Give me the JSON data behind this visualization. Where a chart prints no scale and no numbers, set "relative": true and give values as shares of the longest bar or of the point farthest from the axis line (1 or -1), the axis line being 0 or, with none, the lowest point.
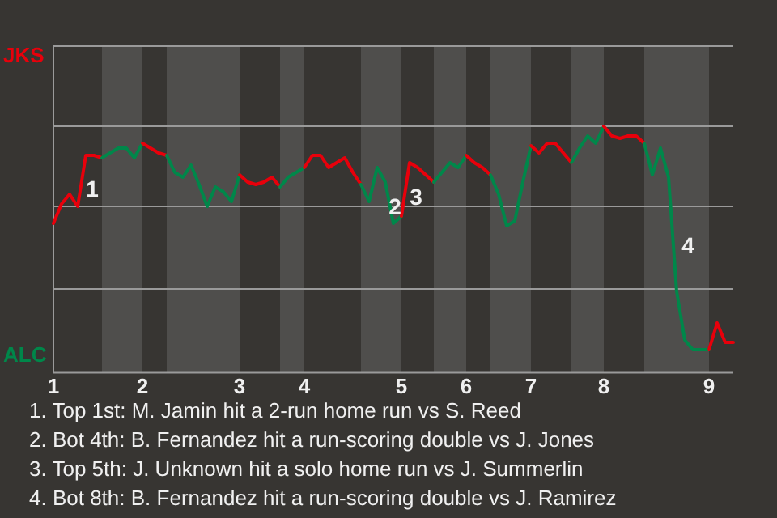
{
  "chart_data": {
    "type": "line",
    "relative": true,
    "marker": "none",
    "line_style": "solid",
    "ref_lines": [
      {
        "axis": "y",
        "value": 0.33,
        "color": "#9a9a9a"
      },
      {
        "axis": "y",
        "value": 0.67,
        "color": "#9a9a9a"
      },
      {
        "axis": "y",
        "value": 1,
        "color": "#9a9a9a"
      },
      {
        "axis": "y",
        "value": 1.33,
        "color": "#9a9a9a"
      }
    ],
    "categories": [
      "1",
      null,
      null,
      null,
      null,
      null,
      null,
      null,
      null,
      null,
      null,
      "2",
      null,
      null,
      null,
      null,
      null,
      null,
      null,
      null,
      null,
      null,
      null,
      "3",
      null,
      null,
      null,
      null,
      null,
      null,
      null,
      "4",
      null,
      null,
      null,
      null,
      null,
      null,
      null,
      null,
      null,
      null,
      null,
      "5",
      null,
      null,
      null,
      null,
      null,
      null,
      null,
      "6",
      null,
      null,
      null,
      null,
      null,
      null,
      null,
      "7",
      null,
      null,
      null,
      null,
      null,
      null,
      null,
      null,
      "8",
      null,
      null,
      null,
      null,
      null,
      null,
      null,
      null,
      null,
      null,
      null,
      null,
      "9",
      null,
      null,
      null
    ],
    "series": [
      {
        "color": "#e8000b",
        "values": [
          0.6,
          0.68,
          0.72,
          0.67,
          0.88,
          0.88,
          0.87,
          null,
          null,
          null,
          null,
          null,
          null,
          null,
          null,
          null,
          null,
          null,
          null,
          null,
          null,
          null,
          null,
          null,
          null,
          null,
          null,
          null,
          null,
          null,
          null,
          null,
          null,
          null,
          null,
          null,
          null,
          null,
          null,
          null,
          null,
          null,
          null,
          null,
          null,
          null,
          null,
          null,
          null,
          null,
          null,
          null,
          null,
          null,
          null,
          null,
          null,
          null,
          null,
          null,
          null,
          null,
          null,
          null,
          null,
          null,
          null,
          null,
          null,
          null,
          null,
          null,
          null,
          null,
          null,
          null,
          null,
          null,
          null,
          null,
          null,
          null,
          null,
          null,
          null
        ]
      },
      {
        "color": "#00874a",
        "values": [
          null,
          null,
          null,
          null,
          null,
          null,
          0.87,
          0.89,
          0.91,
          0.91,
          0.87,
          0.93,
          null,
          null,
          null,
          null,
          null,
          null,
          null,
          null,
          null,
          null,
          null,
          null,
          null,
          null,
          null,
          null,
          null,
          null,
          null,
          null,
          null,
          null,
          null,
          null,
          null,
          null,
          null,
          null,
          null,
          null,
          null,
          null,
          null,
          null,
          null,
          null,
          null,
          null,
          null,
          null,
          null,
          null,
          null,
          null,
          null,
          null,
          null,
          null,
          null,
          null,
          null,
          null,
          null,
          null,
          null,
          null,
          null,
          null,
          null,
          null,
          null,
          null,
          null,
          null,
          null,
          null,
          null,
          null,
          null,
          null,
          null,
          null,
          null
        ]
      },
      {
        "color": "#e8000b",
        "values": [
          null,
          null,
          null,
          null,
          null,
          null,
          null,
          null,
          null,
          null,
          null,
          0.93,
          0.91,
          0.89,
          0.88,
          null,
          null,
          null,
          null,
          null,
          null,
          null,
          null,
          null,
          null,
          null,
          null,
          null,
          null,
          null,
          null,
          null,
          null,
          null,
          null,
          null,
          null,
          null,
          null,
          null,
          null,
          null,
          null,
          null,
          null,
          null,
          null,
          null,
          null,
          null,
          null,
          null,
          null,
          null,
          null,
          null,
          null,
          null,
          null,
          null,
          null,
          null,
          null,
          null,
          null,
          null,
          null,
          null,
          null,
          null,
          null,
          null,
          null,
          null,
          null,
          null,
          null,
          null,
          null,
          null,
          null,
          null,
          null,
          null,
          null
        ]
      },
      {
        "color": "#00874a",
        "values": [
          null,
          null,
          null,
          null,
          null,
          null,
          null,
          null,
          null,
          null,
          null,
          null,
          null,
          null,
          0.88,
          0.81,
          0.79,
          0.84,
          0.76,
          0.67,
          0.75,
          0.73,
          0.69,
          0.8,
          null,
          null,
          null,
          null,
          null,
          null,
          null,
          null,
          null,
          null,
          null,
          null,
          null,
          null,
          null,
          null,
          null,
          null,
          null,
          null,
          null,
          null,
          null,
          null,
          null,
          null,
          null,
          null,
          null,
          null,
          null,
          null,
          null,
          null,
          null,
          null,
          null,
          null,
          null,
          null,
          null,
          null,
          null,
          null,
          null,
          null,
          null,
          null,
          null,
          null,
          null,
          null,
          null,
          null,
          null,
          null,
          null,
          null,
          null,
          null,
          null
        ]
      },
      {
        "color": "#e8000b",
        "values": [
          null,
          null,
          null,
          null,
          null,
          null,
          null,
          null,
          null,
          null,
          null,
          null,
          null,
          null,
          null,
          null,
          null,
          null,
          null,
          null,
          null,
          null,
          null,
          0.8,
          0.77,
          0.76,
          0.77,
          0.79,
          0.75,
          null,
          null,
          null,
          null,
          null,
          null,
          null,
          null,
          null,
          null,
          null,
          null,
          null,
          null,
          null,
          null,
          null,
          null,
          null,
          null,
          null,
          null,
          null,
          null,
          null,
          null,
          null,
          null,
          null,
          null,
          null,
          null,
          null,
          null,
          null,
          null,
          null,
          null,
          null,
          null,
          null,
          null,
          null,
          null,
          null,
          null,
          null,
          null,
          null,
          null,
          null,
          null,
          null,
          null,
          null,
          null
        ]
      },
      {
        "color": "#00874a",
        "values": [
          null,
          null,
          null,
          null,
          null,
          null,
          null,
          null,
          null,
          null,
          null,
          null,
          null,
          null,
          null,
          null,
          null,
          null,
          null,
          null,
          null,
          null,
          null,
          null,
          null,
          null,
          null,
          null,
          0.75,
          0.79,
          0.81,
          0.83,
          null,
          null,
          null,
          null,
          null,
          null,
          null,
          null,
          null,
          null,
          null,
          null,
          null,
          null,
          null,
          null,
          null,
          null,
          null,
          null,
          null,
          null,
          null,
          null,
          null,
          null,
          null,
          null,
          null,
          null,
          null,
          null,
          null,
          null,
          null,
          null,
          null,
          null,
          null,
          null,
          null,
          null,
          null,
          null,
          null,
          null,
          null,
          null,
          null,
          null,
          null,
          null,
          null
        ]
      },
      {
        "color": "#e8000b",
        "values": [
          null,
          null,
          null,
          null,
          null,
          null,
          null,
          null,
          null,
          null,
          null,
          null,
          null,
          null,
          null,
          null,
          null,
          null,
          null,
          null,
          null,
          null,
          null,
          null,
          null,
          null,
          null,
          null,
          null,
          null,
          null,
          0.83,
          0.88,
          0.88,
          0.83,
          0.85,
          0.87,
          0.81,
          0.76,
          null,
          null,
          null,
          null,
          null,
          null,
          null,
          null,
          null,
          null,
          null,
          null,
          null,
          null,
          null,
          null,
          null,
          null,
          null,
          null,
          null,
          null,
          null,
          null,
          null,
          null,
          null,
          null,
          null,
          null,
          null,
          null,
          null,
          null,
          null,
          null,
          null,
          null,
          null,
          null,
          null,
          null,
          null,
          null,
          null,
          null
        ]
      },
      {
        "color": "#00874a",
        "values": [
          null,
          null,
          null,
          null,
          null,
          null,
          null,
          null,
          null,
          null,
          null,
          null,
          null,
          null,
          null,
          null,
          null,
          null,
          null,
          null,
          null,
          null,
          null,
          null,
          null,
          null,
          null,
          null,
          null,
          null,
          null,
          null,
          null,
          null,
          null,
          null,
          null,
          null,
          0.76,
          0.69,
          0.83,
          0.77,
          0.6,
          0.63,
          null,
          null,
          null,
          null,
          null,
          null,
          null,
          null,
          null,
          null,
          null,
          null,
          null,
          null,
          null,
          null,
          null,
          null,
          null,
          null,
          null,
          null,
          null,
          null,
          null,
          null,
          null,
          null,
          null,
          null,
          null,
          null,
          null,
          null,
          null,
          null,
          null,
          null,
          null,
          null,
          null
        ]
      },
      {
        "color": "#e8000b",
        "values": [
          null,
          null,
          null,
          null,
          null,
          null,
          null,
          null,
          null,
          null,
          null,
          null,
          null,
          null,
          null,
          null,
          null,
          null,
          null,
          null,
          null,
          null,
          null,
          null,
          null,
          null,
          null,
          null,
          null,
          null,
          null,
          null,
          null,
          null,
          null,
          null,
          null,
          null,
          null,
          null,
          null,
          null,
          null,
          0.63,
          0.85,
          0.83,
          0.8,
          0.77,
          null,
          null,
          null,
          null,
          null,
          null,
          null,
          null,
          null,
          null,
          null,
          null,
          null,
          null,
          null,
          null,
          null,
          null,
          null,
          null,
          null,
          null,
          null,
          null,
          null,
          null,
          null,
          null,
          null,
          null,
          null,
          null,
          null,
          null,
          null,
          null,
          null
        ]
      },
      {
        "color": "#00874a",
        "values": [
          null,
          null,
          null,
          null,
          null,
          null,
          null,
          null,
          null,
          null,
          null,
          null,
          null,
          null,
          null,
          null,
          null,
          null,
          null,
          null,
          null,
          null,
          null,
          null,
          null,
          null,
          null,
          null,
          null,
          null,
          null,
          null,
          null,
          null,
          null,
          null,
          null,
          null,
          null,
          null,
          null,
          null,
          null,
          null,
          null,
          null,
          null,
          0.77,
          0.81,
          0.85,
          0.83,
          0.88,
          null,
          null,
          null,
          null,
          null,
          null,
          null,
          null,
          null,
          null,
          null,
          null,
          null,
          null,
          null,
          null,
          null,
          null,
          null,
          null,
          null,
          null,
          null,
          null,
          null,
          null,
          null,
          null,
          null,
          null,
          null,
          null,
          null
        ]
      },
      {
        "color": "#e8000b",
        "values": [
          null,
          null,
          null,
          null,
          null,
          null,
          null,
          null,
          null,
          null,
          null,
          null,
          null,
          null,
          null,
          null,
          null,
          null,
          null,
          null,
          null,
          null,
          null,
          null,
          null,
          null,
          null,
          null,
          null,
          null,
          null,
          null,
          null,
          null,
          null,
          null,
          null,
          null,
          null,
          null,
          null,
          null,
          null,
          null,
          null,
          null,
          null,
          null,
          null,
          null,
          null,
          0.88,
          0.85,
          0.83,
          0.8,
          null,
          null,
          null,
          null,
          null,
          null,
          null,
          null,
          null,
          null,
          null,
          null,
          null,
          null,
          null,
          null,
          null,
          null,
          null,
          null,
          null,
          null,
          null,
          null,
          null,
          null,
          null,
          null,
          null,
          null
        ]
      },
      {
        "color": "#00874a",
        "values": [
          null,
          null,
          null,
          null,
          null,
          null,
          null,
          null,
          null,
          null,
          null,
          null,
          null,
          null,
          null,
          null,
          null,
          null,
          null,
          null,
          null,
          null,
          null,
          null,
          null,
          null,
          null,
          null,
          null,
          null,
          null,
          null,
          null,
          null,
          null,
          null,
          null,
          null,
          null,
          null,
          null,
          null,
          null,
          null,
          null,
          null,
          null,
          null,
          null,
          null,
          null,
          null,
          null,
          null,
          0.8,
          0.72,
          0.59,
          0.61,
          0.77,
          0.92,
          null,
          null,
          null,
          null,
          null,
          null,
          null,
          null,
          null,
          null,
          null,
          null,
          null,
          null,
          null,
          null,
          null,
          null,
          null,
          null,
          null,
          null,
          null,
          null,
          null
        ]
      },
      {
        "color": "#e8000b",
        "values": [
          null,
          null,
          null,
          null,
          null,
          null,
          null,
          null,
          null,
          null,
          null,
          null,
          null,
          null,
          null,
          null,
          null,
          null,
          null,
          null,
          null,
          null,
          null,
          null,
          null,
          null,
          null,
          null,
          null,
          null,
          null,
          null,
          null,
          null,
          null,
          null,
          null,
          null,
          null,
          null,
          null,
          null,
          null,
          null,
          null,
          null,
          null,
          null,
          null,
          null,
          null,
          null,
          null,
          null,
          null,
          null,
          null,
          null,
          null,
          0.92,
          0.89,
          0.93,
          0.93,
          0.89,
          0.85,
          null,
          null,
          null,
          null,
          null,
          null,
          null,
          null,
          null,
          null,
          null,
          null,
          null,
          null,
          null,
          null,
          null,
          null,
          null,
          null
        ]
      },
      {
        "color": "#00874a",
        "values": [
          null,
          null,
          null,
          null,
          null,
          null,
          null,
          null,
          null,
          null,
          null,
          null,
          null,
          null,
          null,
          null,
          null,
          null,
          null,
          null,
          null,
          null,
          null,
          null,
          null,
          null,
          null,
          null,
          null,
          null,
          null,
          null,
          null,
          null,
          null,
          null,
          null,
          null,
          null,
          null,
          null,
          null,
          null,
          null,
          null,
          null,
          null,
          null,
          null,
          null,
          null,
          null,
          null,
          null,
          null,
          null,
          null,
          null,
          null,
          null,
          null,
          null,
          null,
          null,
          0.85,
          0.91,
          0.96,
          0.93,
          1,
          null,
          null,
          null,
          null,
          null,
          null,
          null,
          null,
          null,
          null,
          null,
          null,
          null,
          null,
          null,
          null
        ]
      },
      {
        "color": "#e8000b",
        "values": [
          null,
          null,
          null,
          null,
          null,
          null,
          null,
          null,
          null,
          null,
          null,
          null,
          null,
          null,
          null,
          null,
          null,
          null,
          null,
          null,
          null,
          null,
          null,
          null,
          null,
          null,
          null,
          null,
          null,
          null,
          null,
          null,
          null,
          null,
          null,
          null,
          null,
          null,
          null,
          null,
          null,
          null,
          null,
          null,
          null,
          null,
          null,
          null,
          null,
          null,
          null,
          null,
          null,
          null,
          null,
          null,
          null,
          null,
          null,
          null,
          null,
          null,
          null,
          null,
          null,
          null,
          null,
          null,
          1,
          0.96,
          0.95,
          0.96,
          0.96,
          0.93,
          null,
          null,
          null,
          null,
          null,
          null,
          null,
          null,
          null,
          null,
          null
        ]
      },
      {
        "color": "#00874a",
        "values": [
          null,
          null,
          null,
          null,
          null,
          null,
          null,
          null,
          null,
          null,
          null,
          null,
          null,
          null,
          null,
          null,
          null,
          null,
          null,
          null,
          null,
          null,
          null,
          null,
          null,
          null,
          null,
          null,
          null,
          null,
          null,
          null,
          null,
          null,
          null,
          null,
          null,
          null,
          null,
          null,
          null,
          null,
          null,
          null,
          null,
          null,
          null,
          null,
          null,
          null,
          null,
          null,
          null,
          null,
          null,
          null,
          null,
          null,
          null,
          null,
          null,
          null,
          null,
          null,
          null,
          null,
          null,
          null,
          null,
          null,
          null,
          null,
          null,
          0.93,
          0.8,
          0.91,
          0.79,
          0.32,
          0.12,
          0.08,
          0.08,
          0.08,
          null,
          null,
          null
        ]
      },
      {
        "color": "#e8000b",
        "values": [
          null,
          null,
          null,
          null,
          null,
          null,
          null,
          null,
          null,
          null,
          null,
          null,
          null,
          null,
          null,
          null,
          null,
          null,
          null,
          null,
          null,
          null,
          null,
          null,
          null,
          null,
          null,
          null,
          null,
          null,
          null,
          null,
          null,
          null,
          null,
          null,
          null,
          null,
          null,
          null,
          null,
          null,
          null,
          null,
          null,
          null,
          null,
          null,
          null,
          null,
          null,
          null,
          null,
          null,
          null,
          null,
          null,
          null,
          null,
          null,
          null,
          null,
          null,
          null,
          null,
          null,
          null,
          null,
          null,
          null,
          null,
          null,
          null,
          null,
          null,
          null,
          null,
          null,
          null,
          null,
          null,
          0.08,
          0.19,
          0.11,
          0.11
        ]
      }
    ],
    "annotations": [
      "JKS",
      "ALC",
      "1",
      "2",
      "3",
      "4",
      "1. Top 1st: M. Jamin hit a 2-run home run vs S. Reed",
      "2. Bot 4th: B. Fernandez hit a run-scoring double vs J. Jones",
      "3. Top 5th: J. Unknown hit a solo home run vs J. Summerlin",
      "4. Bot 8th: B. Fernandez hit a run-scoring double vs J. Ramirez"
    ]
  }
}
